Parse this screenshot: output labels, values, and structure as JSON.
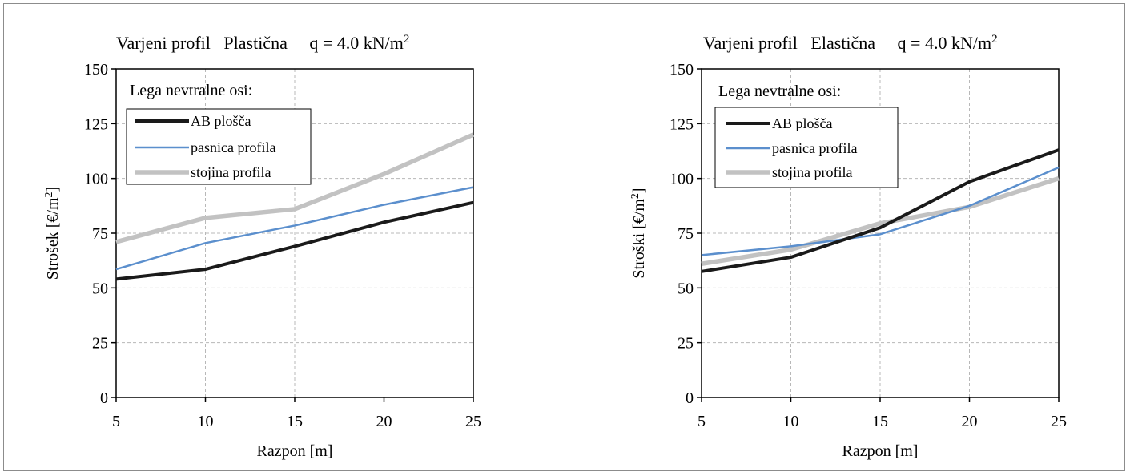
{
  "charts": [
    {
      "title_prefix": "Varjeni profil   Plastična     q = 4.0 kN/m",
      "title_sup": "2",
      "legend_title": "Lega nevtralne osi:"
    },
    {
      "title_prefix": "Varjeni profil   Elastična     q = 4.0 kN/m",
      "title_sup": "2",
      "legend_title": "Lega nevtralne osi:"
    }
  ],
  "chart_data": [
    {
      "type": "line",
      "title": "Varjeni profil   Plastična     q = 4.0 kN/m2",
      "xlabel": "Razpon [m]",
      "ylabel": "Strošek [€/m2]",
      "ylabel_main": "Strošek [€/m",
      "ylabel_sup": "2",
      "ylabel_end": "]",
      "x": [
        5,
        10,
        15,
        20,
        25
      ],
      "xlim": [
        5,
        25
      ],
      "ylim": [
        0,
        150
      ],
      "xticks": [
        "5",
        "10",
        "15",
        "20",
        "25"
      ],
      "yticks": [
        "0",
        "25",
        "50",
        "75",
        "100",
        "125",
        "150"
      ],
      "grid": true,
      "legend_position": "top-left",
      "series": [
        {
          "name": "AB plošča",
          "color": "#1a1a1a",
          "values": [
            54,
            58.5,
            69,
            80,
            89
          ]
        },
        {
          "name": "pasnica profila",
          "color": "#5b8fcd",
          "values": [
            58.5,
            70.5,
            78.5,
            88,
            96
          ]
        },
        {
          "name": "stojina profila",
          "color": "#c2c2c2",
          "values": [
            71,
            82,
            86,
            102,
            120
          ]
        }
      ]
    },
    {
      "type": "line",
      "title": "Varjeni profil   Elastična     q = 4.0 kN/m2",
      "xlabel": "Razpon [m]",
      "ylabel": "Stroški [€/m2]",
      "ylabel_main": "Stroški [€/m",
      "ylabel_sup": "2",
      "ylabel_end": "]",
      "x": [
        5,
        10,
        15,
        20,
        25
      ],
      "xlim": [
        5,
        25
      ],
      "ylim": [
        0,
        150
      ],
      "xticks": [
        "5",
        "10",
        "15",
        "20",
        "25"
      ],
      "yticks": [
        "0",
        "25",
        "50",
        "75",
        "100",
        "125",
        "150"
      ],
      "grid": true,
      "legend_position": "top-left",
      "series": [
        {
          "name": "AB plošča",
          "color": "#1a1a1a",
          "values": [
            57.5,
            64,
            77.5,
            98.5,
            113
          ]
        },
        {
          "name": "pasnica profila",
          "color": "#5b8fcd",
          "values": [
            65,
            69,
            74.5,
            87.5,
            105
          ]
        },
        {
          "name": "stojina profila",
          "color": "#c2c2c2",
          "values": [
            61,
            67.5,
            79.5,
            87,
            100
          ]
        }
      ]
    }
  ]
}
